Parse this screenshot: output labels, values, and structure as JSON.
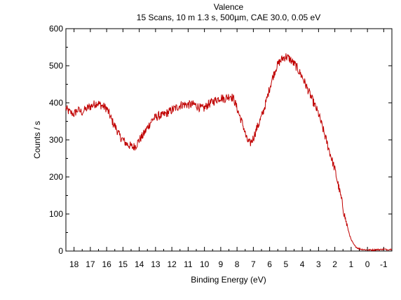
{
  "chart_data": {
    "type": "line",
    "title": "Valence",
    "subtitle": "15 Scans,  10 m 1.3 s,  500µm,  CAE 30.0,  0.05 eV",
    "xlabel": "Binding Energy (eV)",
    "ylabel": "Counts / s",
    "xlim": [
      18.5,
      -1.5
    ],
    "ylim": [
      0,
      600
    ],
    "x_reversed": true,
    "x_ticks": [
      18,
      17,
      16,
      15,
      14,
      13,
      12,
      11,
      10,
      9,
      8,
      7,
      6,
      5,
      4,
      3,
      2,
      1,
      0,
      -1
    ],
    "y_ticks": [
      0,
      100,
      200,
      300,
      400,
      500,
      600
    ],
    "grid": false,
    "line_color": "#c00000",
    "series": [
      {
        "name": "",
        "x": [
          18.5,
          18.3,
          18.0,
          17.8,
          17.5,
          17.2,
          17.0,
          16.8,
          16.6,
          16.4,
          16.2,
          16.0,
          15.8,
          15.6,
          15.4,
          15.2,
          15.0,
          14.8,
          14.6,
          14.4,
          14.2,
          14.0,
          13.8,
          13.6,
          13.4,
          13.2,
          13.0,
          12.8,
          12.6,
          12.4,
          12.2,
          12.0,
          11.8,
          11.6,
          11.4,
          11.2,
          11.0,
          10.8,
          10.6,
          10.4,
          10.2,
          10.0,
          9.8,
          9.6,
          9.4,
          9.2,
          9.0,
          8.8,
          8.6,
          8.4,
          8.2,
          8.0,
          7.8,
          7.6,
          7.4,
          7.2,
          7.0,
          6.8,
          6.6,
          6.4,
          6.2,
          6.0,
          5.8,
          5.6,
          5.4,
          5.2,
          5.0,
          4.8,
          4.6,
          4.4,
          4.2,
          4.0,
          3.8,
          3.6,
          3.4,
          3.2,
          3.0,
          2.8,
          2.6,
          2.4,
          2.2,
          2.0,
          1.8,
          1.6,
          1.4,
          1.2,
          1.0,
          0.8,
          0.6,
          0.4,
          0.2,
          0.0,
          -0.2,
          -0.4,
          -0.6,
          -0.8,
          -1.0,
          -1.2,
          -1.5
        ],
        "y": [
          385,
          375,
          370,
          380,
          375,
          385,
          390,
          395,
          400,
          395,
          390,
          385,
          365,
          345,
          330,
          310,
          300,
          290,
          285,
          280,
          285,
          300,
          310,
          325,
          340,
          355,
          360,
          365,
          365,
          370,
          375,
          380,
          385,
          390,
          395,
          395,
          395,
          395,
          395,
          390,
          385,
          385,
          395,
          400,
          405,
          410,
          415,
          410,
          415,
          420,
          410,
          385,
          360,
          335,
          300,
          290,
          305,
          330,
          350,
          375,
          405,
          440,
          470,
          495,
          510,
          520,
          525,
          520,
          510,
          500,
          485,
          470,
          450,
          430,
          410,
          390,
          370,
          340,
          310,
          280,
          250,
          220,
          180,
          140,
          95,
          60,
          30,
          15,
          8,
          5,
          4,
          3,
          3,
          3,
          4,
          4,
          5,
          4,
          5
        ]
      }
    ]
  }
}
